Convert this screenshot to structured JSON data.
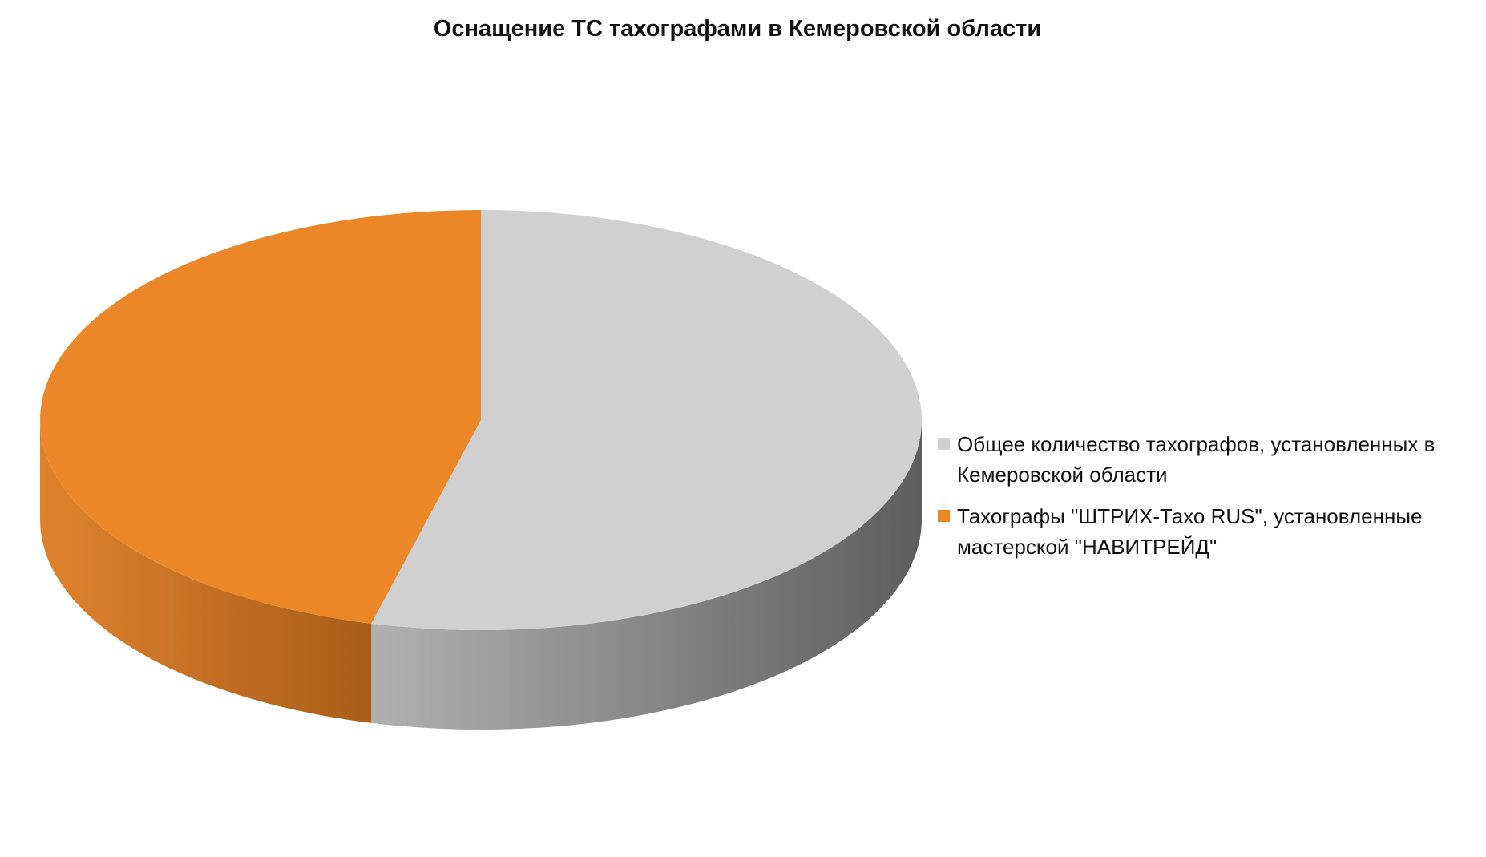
{
  "chart_data": {
    "type": "pie",
    "title": "Оснащение ТС тахографами в Кемеровской области",
    "categories": [
      "Общее количество тахографов, установленных в Кемеровской области",
      "Тахографы \"ШТРИХ-Тахо RUS\", установленные мастерской \"НАВИТРЕЙД\""
    ],
    "values": [
      54,
      46
    ],
    "colors": [
      "#d0d0d0",
      "#ec8729"
    ],
    "legend": "right"
  }
}
